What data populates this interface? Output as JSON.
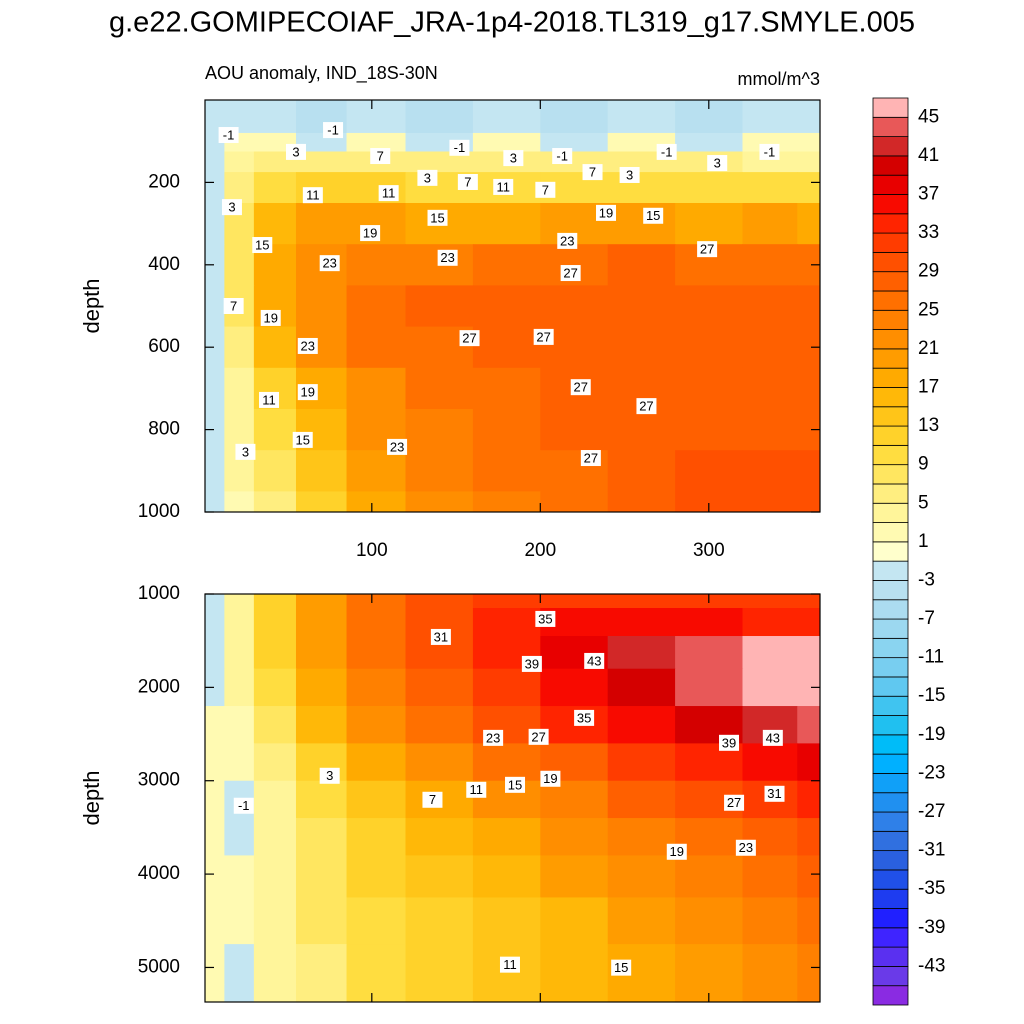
{
  "chart_data": {
    "type": "contour",
    "title": "g.e22.GOMIPECOIAF_JRA-1p4-2018.TL319_g17.SMYLE.005",
    "colorbar": {
      "levels": [
        -45,
        -43,
        -41,
        -39,
        -37,
        -35,
        -33,
        -31,
        -29,
        -27,
        -25,
        -23,
        -21,
        -19,
        -17,
        -15,
        -13,
        -11,
        -9,
        -7,
        -5,
        -3,
        -1,
        1,
        3,
        5,
        7,
        9,
        11,
        13,
        15,
        17,
        19,
        21,
        23,
        25,
        27,
        29,
        31,
        33,
        35,
        37,
        39,
        41,
        43,
        45
      ],
      "colors": [
        "#8a2be2",
        "#6a3ae8",
        "#5a30f0",
        "#3f24ff",
        "#2020ff",
        "#1e3cf0",
        "#2050e8",
        "#2a60e0",
        "#3070e0",
        "#2f80e8",
        "#2090f0",
        "#10a0f8",
        "#00b0ff",
        "#00bcf8",
        "#20c0f0",
        "#40c4f0",
        "#60c8f0",
        "#78cef0",
        "#8ad4f0",
        "#9cd8f0",
        "#acdcf0",
        "#b8e0f0",
        "#c4e6f2",
        "#ffffcc",
        "#fffab2",
        "#fff59a",
        "#ffee80",
        "#ffe660",
        "#ffdd40",
        "#ffd22a",
        "#ffc518",
        "#ffb808",
        "#ffaa00",
        "#ff9c00",
        "#ff8e00",
        "#ff8000",
        "#ff7000",
        "#ff6000",
        "#ff5000",
        "#ff3c00",
        "#ff2400",
        "#f80a00",
        "#e80000",
        "#d40000",
        "#d22828",
        "#e85858",
        "#ffb4b4"
      ],
      "ticks": [
        45,
        41,
        37,
        33,
        29,
        25,
        21,
        17,
        13,
        9,
        5,
        1,
        -3,
        -7,
        -11,
        -15,
        -19,
        -23,
        -27,
        -31,
        -35,
        -39,
        -43
      ]
    },
    "panels": [
      {
        "left_title": "AOU anomaly, IND_18S-30N",
        "right_title": "mmol/m^3",
        "ylabel": "depth",
        "xlim": [
          1,
          366
        ],
        "ylim": [
          0,
          1000
        ],
        "xticks": [
          100,
          200,
          300
        ],
        "yticks": [
          200,
          400,
          600,
          800,
          1000
        ],
        "show_xtick_labels": true,
        "x": [
          5,
          20,
          40,
          70,
          100,
          140,
          180,
          220,
          260,
          300,
          340,
          365
        ],
        "depth": [
          60,
          100,
          150,
          200,
          300,
          400,
          500,
          600,
          700,
          800,
          900,
          1000
        ],
        "z": [
          [
            -3,
            -2,
            -3,
            -5,
            -3,
            -5,
            -3,
            -5,
            -3,
            -5,
            -3,
            -3
          ],
          [
            -2,
            1,
            1,
            -2,
            1,
            -2,
            1,
            -2,
            1,
            -2,
            1,
            1
          ],
          [
            -2,
            3,
            5,
            5,
            5,
            5,
            5,
            5,
            5,
            5,
            3,
            3
          ],
          [
            -2,
            5,
            9,
            11,
            11,
            9,
            9,
            9,
            9,
            9,
            9,
            9
          ],
          [
            -2,
            7,
            15,
            19,
            19,
            17,
            17,
            19,
            19,
            17,
            19,
            17
          ],
          [
            -2,
            7,
            17,
            22,
            24,
            24,
            25,
            26,
            27,
            26,
            26,
            26
          ],
          [
            -2,
            7,
            17,
            22,
            25,
            27,
            27,
            27,
            27,
            27,
            27,
            27
          ],
          [
            -2,
            5,
            15,
            21,
            25,
            26,
            27,
            27,
            28,
            28,
            28,
            28
          ],
          [
            -2,
            3,
            11,
            17,
            22,
            25,
            26,
            27,
            28,
            28,
            28,
            28
          ],
          [
            -2,
            3,
            9,
            15,
            21,
            24,
            26,
            27,
            28,
            28,
            28,
            28
          ],
          [
            -2,
            3,
            7,
            13,
            19,
            23,
            25,
            26,
            28,
            29,
            29,
            29
          ],
          [
            -2,
            1,
            5,
            11,
            17,
            22,
            24,
            26,
            28,
            29,
            30,
            30
          ]
        ],
        "contour_labels": [
          {
            "value": -1,
            "x": 15,
            "depth": 85
          },
          {
            "value": -1,
            "x": 77,
            "depth": 73
          },
          {
            "value": 3,
            "x": 55,
            "depth": 126
          },
          {
            "value": 7,
            "x": 105,
            "depth": 136
          },
          {
            "value": -1,
            "x": 152,
            "depth": 116
          },
          {
            "value": 3,
            "x": 184,
            "depth": 141
          },
          {
            "value": -1,
            "x": 213,
            "depth": 136
          },
          {
            "value": 7,
            "x": 231,
            "depth": 175
          },
          {
            "value": 3,
            "x": 253,
            "depth": 182
          },
          {
            "value": -1,
            "x": 275,
            "depth": 126
          },
          {
            "value": 3,
            "x": 305,
            "depth": 153
          },
          {
            "value": -1,
            "x": 336,
            "depth": 126
          },
          {
            "value": 3,
            "x": 133,
            "depth": 189
          },
          {
            "value": 7,
            "x": 157,
            "depth": 199
          },
          {
            "value": 11,
            "x": 178,
            "depth": 211
          },
          {
            "value": 7,
            "x": 203,
            "depth": 218
          },
          {
            "value": 11,
            "x": 65,
            "depth": 231
          },
          {
            "value": 11,
            "x": 110,
            "depth": 226
          },
          {
            "value": 3,
            "x": 17,
            "depth": 260
          },
          {
            "value": 15,
            "x": 139,
            "depth": 286
          },
          {
            "value": 19,
            "x": 239,
            "depth": 274
          },
          {
            "value": 15,
            "x": 267,
            "depth": 281
          },
          {
            "value": 15,
            "x": 35,
            "depth": 352
          },
          {
            "value": 19,
            "x": 99,
            "depth": 323
          },
          {
            "value": 23,
            "x": 216,
            "depth": 342
          },
          {
            "value": 27,
            "x": 299,
            "depth": 362
          },
          {
            "value": 23,
            "x": 75,
            "depth": 396
          },
          {
            "value": 23,
            "x": 145,
            "depth": 383
          },
          {
            "value": 27,
            "x": 218,
            "depth": 420
          },
          {
            "value": 7,
            "x": 18,
            "depth": 500
          },
          {
            "value": 19,
            "x": 40,
            "depth": 529
          },
          {
            "value": 27,
            "x": 158,
            "depth": 578
          },
          {
            "value": 27,
            "x": 202,
            "depth": 575
          },
          {
            "value": 23,
            "x": 62,
            "depth": 597
          },
          {
            "value": 27,
            "x": 224,
            "depth": 697
          },
          {
            "value": 19,
            "x": 62,
            "depth": 709
          },
          {
            "value": 11,
            "x": 39,
            "depth": 728
          },
          {
            "value": 27,
            "x": 263,
            "depth": 743
          },
          {
            "value": 15,
            "x": 59,
            "depth": 825
          },
          {
            "value": 23,
            "x": 115,
            "depth": 842
          },
          {
            "value": 3,
            "x": 25,
            "depth": 854
          },
          {
            "value": 27,
            "x": 230,
            "depth": 869
          }
        ]
      },
      {
        "ylabel": "depth",
        "xlim": [
          1,
          366
        ],
        "ylim": [
          1000,
          5370
        ],
        "xticks": [
          100,
          200,
          300
        ],
        "yticks": [
          1000,
          2000,
          3000,
          4000,
          5000
        ],
        "show_xtick_labels": false,
        "x": [
          5,
          20,
          40,
          70,
          100,
          140,
          180,
          220,
          260,
          300,
          340,
          365
        ],
        "depth": [
          1000,
          1300,
          1600,
          2000,
          2400,
          2800,
          3200,
          3600,
          4000,
          4500,
          5000,
          5360
        ],
        "z": [
          [
            -2,
            3,
            11,
            19,
            25,
            29,
            31,
            31,
            31,
            31,
            31,
            31
          ],
          [
            -2,
            3,
            11,
            19,
            25,
            30,
            33,
            35,
            35,
            35,
            33,
            33
          ],
          [
            -2,
            3,
            11,
            19,
            25,
            30,
            34,
            38,
            41,
            43,
            45,
            45
          ],
          [
            -2,
            3,
            9,
            17,
            23,
            28,
            32,
            36,
            40,
            43,
            45,
            46
          ],
          [
            1,
            1,
            7,
            15,
            21,
            26,
            30,
            33,
            36,
            39,
            42,
            43
          ],
          [
            1,
            1,
            5,
            11,
            17,
            22,
            25,
            28,
            31,
            34,
            36,
            38
          ],
          [
            1,
            -2,
            3,
            9,
            13,
            17,
            21,
            24,
            27,
            29,
            31,
            33
          ],
          [
            1,
            -2,
            3,
            7,
            11,
            15,
            18,
            21,
            24,
            26,
            28,
            30
          ],
          [
            1,
            1,
            3,
            7,
            11,
            13,
            16,
            19,
            21,
            23,
            25,
            27
          ],
          [
            1,
            1,
            3,
            7,
            9,
            11,
            14,
            16,
            19,
            21,
            23,
            25
          ],
          [
            1,
            -2,
            3,
            5,
            9,
            11,
            13,
            15,
            17,
            20,
            22,
            24
          ],
          [
            1,
            -2,
            3,
            5,
            9,
            11,
            13,
            15,
            17,
            19,
            21,
            23
          ]
        ],
        "contour_labels": [
          {
            "value": 35,
            "x": 203,
            "depth": 1267
          },
          {
            "value": 31,
            "x": 141,
            "depth": 1460
          },
          {
            "value": 39,
            "x": 195,
            "depth": 1749
          },
          {
            "value": 43,
            "x": 232,
            "depth": 1717
          },
          {
            "value": 35,
            "x": 226,
            "depth": 2327
          },
          {
            "value": 23,
            "x": 172,
            "depth": 2541
          },
          {
            "value": 27,
            "x": 199,
            "depth": 2530
          },
          {
            "value": 39,
            "x": 312,
            "depth": 2594
          },
          {
            "value": 43,
            "x": 338,
            "depth": 2541
          },
          {
            "value": 3,
            "x": 75,
            "depth": 2947
          },
          {
            "value": 19,
            "x": 206,
            "depth": 2979
          },
          {
            "value": 11,
            "x": 162,
            "depth": 3097
          },
          {
            "value": 15,
            "x": 185,
            "depth": 3044
          },
          {
            "value": 7,
            "x": 136,
            "depth": 3204
          },
          {
            "value": 31,
            "x": 339,
            "depth": 3140
          },
          {
            "value": 27,
            "x": 315,
            "depth": 3236
          },
          {
            "value": -1,
            "x": 24,
            "depth": 3268
          },
          {
            "value": 19,
            "x": 281,
            "depth": 3761
          },
          {
            "value": 23,
            "x": 322,
            "depth": 3718
          },
          {
            "value": 11,
            "x": 182,
            "depth": 4970
          },
          {
            "value": 15,
            "x": 248,
            "depth": 5002
          }
        ]
      }
    ]
  }
}
